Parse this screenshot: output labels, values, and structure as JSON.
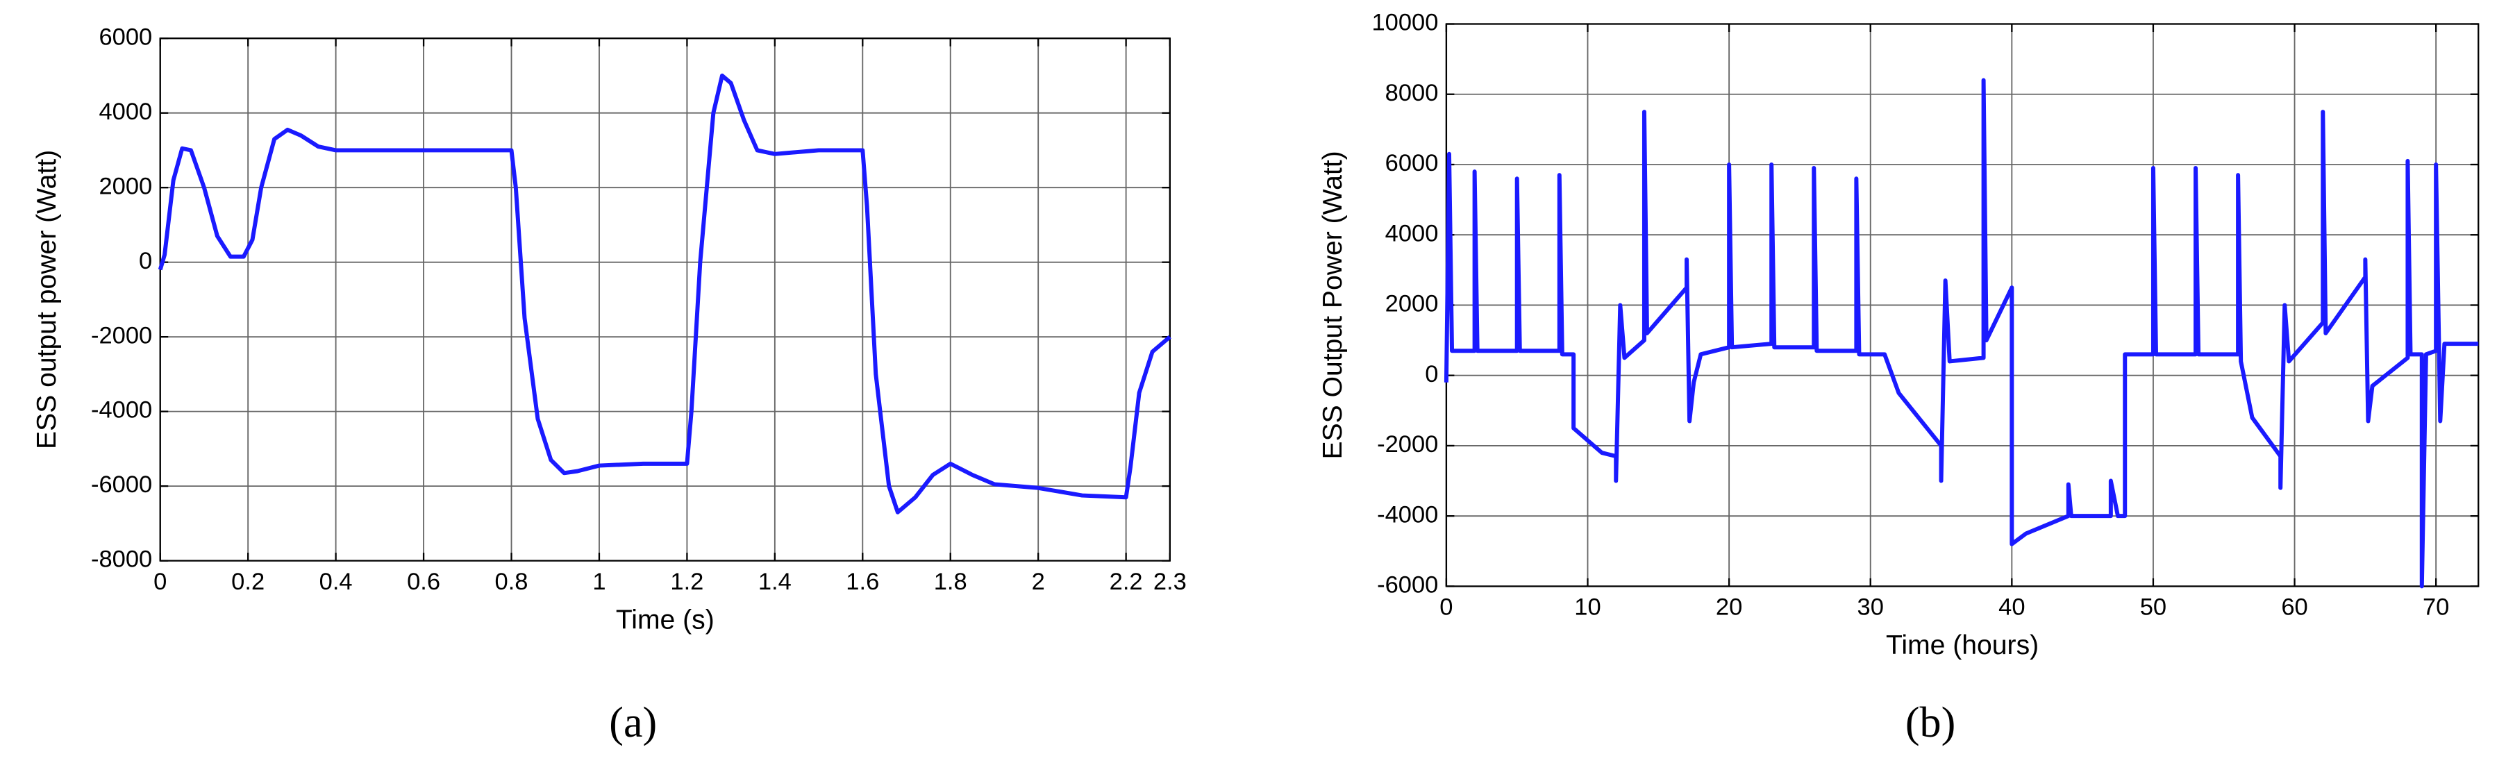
{
  "chart_data": [
    {
      "type": "line",
      "caption": "(a)",
      "xlabel": "Time (s)",
      "ylabel": "ESS output power (Watt)",
      "xlim": [
        0,
        2.3
      ],
      "xticks": [
        0,
        0.2,
        0.4,
        0.6,
        0.8,
        1,
        1.2,
        1.4,
        1.6,
        1.8,
        2,
        2.2,
        2.3
      ],
      "ylim": [
        -8000,
        6000
      ],
      "yticks": [
        -8000,
        -6000,
        -4000,
        -2000,
        0,
        2000,
        4000,
        6000
      ],
      "grid": true,
      "series": [
        {
          "color": "#1a1aff",
          "x": [
            0,
            0.01,
            0.03,
            0.05,
            0.07,
            0.1,
            0.13,
            0.16,
            0.19,
            0.21,
            0.23,
            0.26,
            0.29,
            0.32,
            0.36,
            0.4,
            0.5,
            0.6,
            0.7,
            0.8,
            0.81,
            0.83,
            0.86,
            0.89,
            0.92,
            0.95,
            1.0,
            1.1,
            1.2,
            1.21,
            1.23,
            1.26,
            1.28,
            1.3,
            1.33,
            1.36,
            1.4,
            1.5,
            1.6,
            1.61,
            1.63,
            1.66,
            1.68,
            1.72,
            1.76,
            1.8,
            1.85,
            1.9,
            2.0,
            2.1,
            2.2,
            2.21,
            2.23,
            2.26,
            2.3
          ],
          "values": [
            -200,
            200,
            2200,
            3050,
            3000,
            2000,
            700,
            150,
            150,
            600,
            2000,
            3300,
            3550,
            3400,
            3100,
            3000,
            3000,
            3000,
            3000,
            3000,
            2000,
            -1500,
            -4200,
            -5300,
            -5650,
            -5600,
            -5450,
            -5400,
            -5400,
            -4000,
            0,
            4000,
            5000,
            4800,
            3800,
            3000,
            2900,
            3000,
            3000,
            1500,
            -3000,
            -6000,
            -6700,
            -6300,
            -5700,
            -5400,
            -5700,
            -5950,
            -6050,
            -6250,
            -6300,
            -5500,
            -3500,
            -2400,
            -2000
          ]
        }
      ]
    },
    {
      "type": "line",
      "caption": "(b)",
      "xlabel": "Time (hours)",
      "ylabel": "ESS Output Power (Watt)",
      "xlim": [
        0,
        73
      ],
      "xticks": [
        0,
        10,
        20,
        30,
        40,
        50,
        60,
        70
      ],
      "ylim": [
        -6000,
        10000
      ],
      "yticks": [
        -6000,
        -4000,
        -2000,
        0,
        2000,
        4000,
        6000,
        8000,
        10000
      ],
      "grid": true,
      "series": [
        {
          "color": "#1a1aff",
          "x": [
            0,
            0.2,
            0.4,
            2,
            2,
            2.2,
            5,
            5,
            5.2,
            8,
            8,
            8.2,
            9,
            9,
            11,
            12,
            12,
            12.3,
            12.6,
            14,
            14,
            14.2,
            17,
            17,
            17.2,
            17.5,
            18,
            20,
            20,
            20.2,
            23,
            23,
            23.2,
            26,
            26,
            26.2,
            29,
            29,
            29.2,
            31,
            32,
            34,
            35,
            35,
            35.3,
            35.6,
            38,
            38,
            38.2,
            40,
            40,
            41,
            44,
            44,
            44.2,
            47,
            47,
            47.5,
            48,
            48,
            50,
            50,
            50.2,
            53,
            53,
            53.2,
            56,
            56,
            56.2,
            57,
            59,
            59,
            59.3,
            59.6,
            62,
            62,
            62.2,
            65,
            65,
            65.2,
            65.5,
            68,
            68,
            68.2,
            69,
            69,
            69.3,
            70,
            70,
            70.3,
            70.6,
            73
          ],
          "values": [
            -200,
            6300,
            700,
            700,
            5800,
            700,
            700,
            5600,
            700,
            700,
            5700,
            600,
            600,
            -1500,
            -2200,
            -2300,
            -3000,
            2000,
            500,
            1000,
            7500,
            1200,
            2500,
            3300,
            -1300,
            -200,
            600,
            800,
            6000,
            800,
            900,
            6000,
            800,
            800,
            5900,
            700,
            700,
            5600,
            600,
            600,
            -500,
            -1500,
            -2000,
            -3000,
            2700,
            400,
            500,
            8400,
            1000,
            2500,
            -4800,
            -4500,
            -4000,
            -3100,
            -4000,
            -4000,
            -3000,
            -4000,
            -4000,
            600,
            600,
            5900,
            600,
            600,
            5900,
            600,
            600,
            5700,
            400,
            -1200,
            -2300,
            -3200,
            2000,
            400,
            1500,
            7500,
            1200,
            2800,
            3300,
            -1300,
            -300,
            500,
            6100,
            600,
            600,
            -6000,
            600,
            700,
            6000,
            -1300,
            900,
            900
          ]
        }
      ]
    }
  ]
}
